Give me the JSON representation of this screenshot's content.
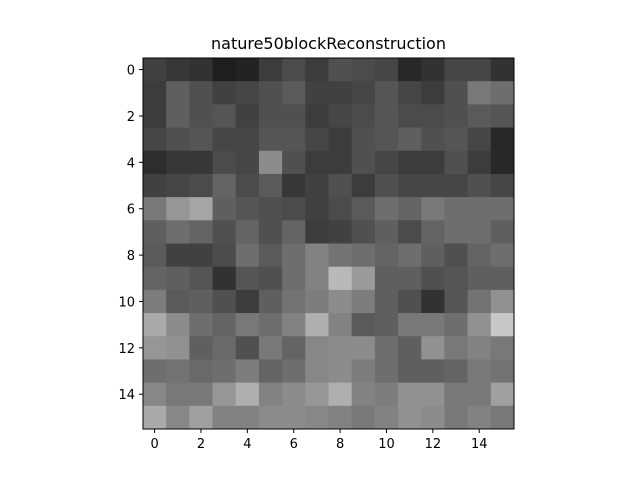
{
  "chart_data": {
    "type": "heatmap",
    "title": "nature50blockReconstruction",
    "xlabel": "",
    "ylabel": "",
    "colormap": "gray",
    "value_range": [
      0,
      255
    ],
    "x_ticks": [
      0,
      2,
      4,
      6,
      8,
      10,
      12,
      14
    ],
    "y_ticks": [
      0,
      2,
      4,
      6,
      8,
      10,
      12,
      14
    ],
    "xlim": [
      -0.5,
      15.5
    ],
    "ylim": [
      15.5,
      -0.5
    ],
    "values": [
      [
        65,
        55,
        50,
        30,
        35,
        60,
        75,
        60,
        80,
        75,
        70,
        40,
        50,
        70,
        70,
        50
      ],
      [
        60,
        95,
        80,
        65,
        70,
        80,
        90,
        65,
        65,
        70,
        85,
        70,
        60,
        80,
        120,
        110
      ],
      [
        60,
        95,
        80,
        85,
        65,
        80,
        80,
        60,
        70,
        75,
        85,
        75,
        75,
        80,
        90,
        85
      ],
      [
        70,
        80,
        85,
        70,
        70,
        85,
        85,
        70,
        60,
        80,
        85,
        95,
        80,
        85,
        70,
        40
      ],
      [
        45,
        55,
        55,
        75,
        70,
        140,
        80,
        60,
        60,
        80,
        70,
        60,
        60,
        80,
        60,
        40
      ],
      [
        65,
        70,
        75,
        100,
        75,
        90,
        55,
        65,
        80,
        60,
        80,
        70,
        70,
        70,
        80,
        70
      ],
      [
        120,
        150,
        165,
        95,
        85,
        80,
        75,
        65,
        75,
        90,
        110,
        100,
        120,
        110,
        110,
        110
      ],
      [
        95,
        110,
        100,
        80,
        100,
        80,
        100,
        60,
        65,
        80,
        95,
        75,
        100,
        110,
        110,
        95
      ],
      [
        90,
        65,
        65,
        75,
        110,
        90,
        110,
        130,
        115,
        110,
        100,
        110,
        95,
        80,
        100,
        110
      ],
      [
        100,
        95,
        85,
        50,
        85,
        80,
        110,
        130,
        185,
        155,
        95,
        95,
        80,
        85,
        95,
        95
      ],
      [
        125,
        90,
        95,
        80,
        60,
        95,
        115,
        125,
        140,
        125,
        95,
        80,
        50,
        85,
        115,
        145
      ],
      [
        170,
        140,
        110,
        100,
        120,
        110,
        130,
        175,
        130,
        90,
        95,
        120,
        120,
        110,
        145,
        200
      ],
      [
        150,
        145,
        95,
        105,
        80,
        120,
        100,
        135,
        140,
        140,
        110,
        95,
        145,
        120,
        130,
        120
      ],
      [
        110,
        115,
        105,
        110,
        125,
        100,
        110,
        135,
        140,
        125,
        110,
        95,
        95,
        100,
        120,
        115
      ],
      [
        135,
        120,
        120,
        150,
        175,
        130,
        140,
        150,
        175,
        130,
        125,
        145,
        145,
        120,
        120,
        160
      ],
      [
        170,
        135,
        160,
        130,
        130,
        140,
        140,
        135,
        130,
        120,
        130,
        145,
        140,
        120,
        130,
        120
      ]
    ]
  }
}
